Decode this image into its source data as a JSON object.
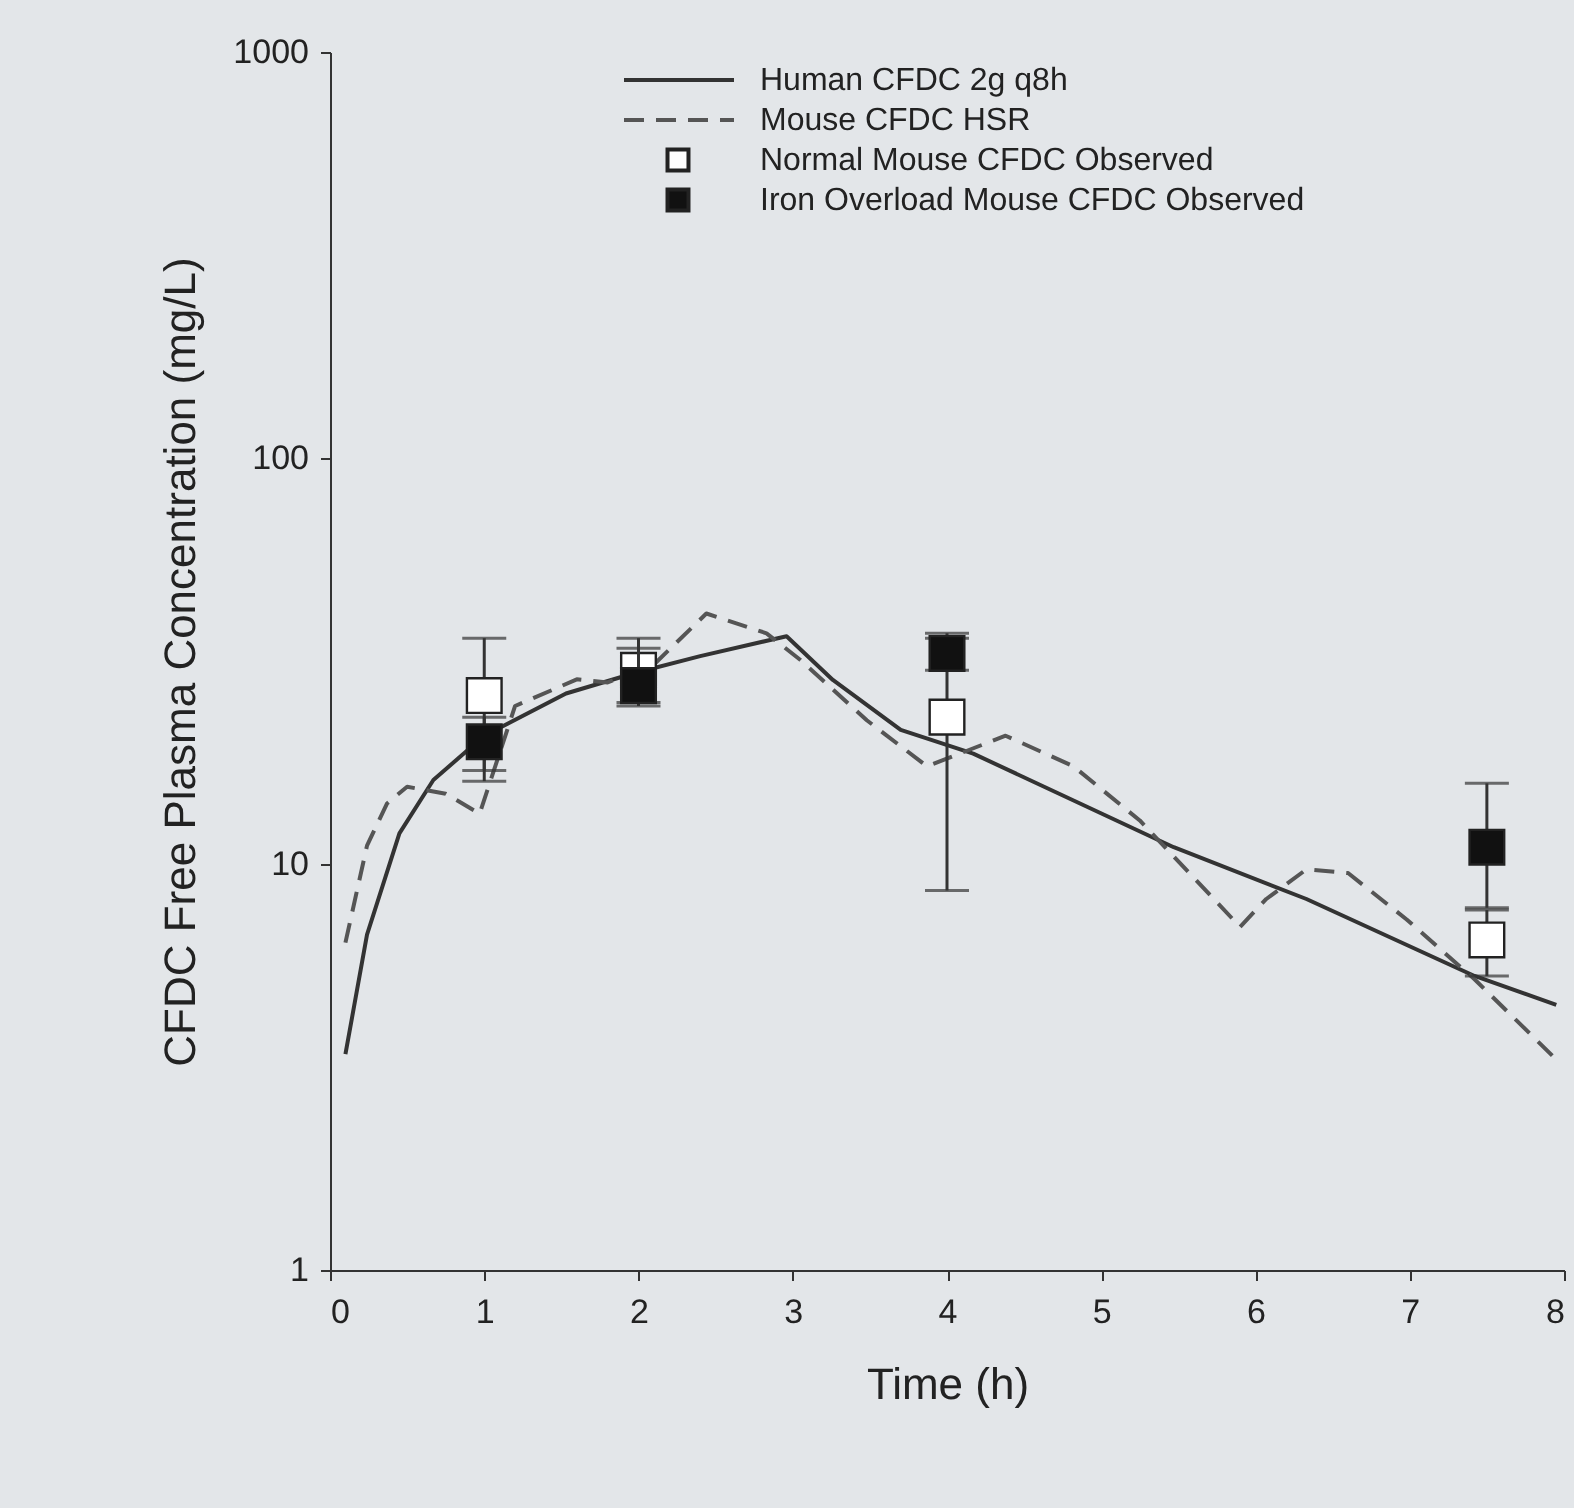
{
  "chart_data": {
    "type": "line",
    "xlabel": "Time (h)",
    "ylabel": "CFDC Free Plasma Concentration (mg/L)",
    "xlim": [
      0,
      8
    ],
    "xticks": [
      0,
      1,
      2,
      3,
      4,
      5,
      6,
      7,
      8
    ],
    "ylim": [
      1,
      1000
    ],
    "yticks": [
      1,
      10,
      100,
      1000
    ],
    "log": "y",
    "grid": false,
    "legend": "top right",
    "series": [
      {
        "name": "Human CFDC 2g q8h",
        "line_style": "solid",
        "color": "#333333",
        "x": [
          0.1,
          0.24,
          0.45,
          0.67,
          1.0,
          1.53,
          1.97,
          2.4,
          2.96,
          3.26,
          3.7,
          4.17,
          5.47,
          6.33,
          7.42,
          7.95
        ],
        "values": [
          3.4,
          6.7,
          11.9,
          16.1,
          20.7,
          26.3,
          29.5,
          32.5,
          36.4,
          28.4,
          21.4,
          18.7,
          11.0,
          8.2,
          5.3,
          4.5
        ]
      },
      {
        "name": "Mouse CFDC HSR",
        "line_style": "dashed",
        "color": "#555555",
        "x": [
          0.1,
          0.24,
          0.37,
          0.5,
          0.75,
          0.97,
          1.2,
          1.6,
          1.8,
          2.1,
          2.44,
          2.83,
          3.05,
          3.48,
          3.87,
          4.38,
          4.82,
          5.25,
          5.9,
          6.07,
          6.33,
          6.6,
          6.98,
          7.42,
          7.95
        ],
        "values": [
          6.4,
          11.1,
          14.1,
          15.5,
          14.9,
          13.3,
          24.5,
          28.5,
          28.0,
          31.0,
          41.4,
          37.0,
          31.8,
          22.6,
          17.4,
          20.7,
          17.4,
          12.8,
          7.0,
          8.2,
          9.7,
          9.5,
          7.3,
          5.2,
          3.3
        ]
      },
      {
        "name": "Normal Mouse CFDC Observed",
        "type": "scatter",
        "marker": "square",
        "color": "#ffffff",
        "x": [
          1,
          2,
          4,
          7.5
        ],
        "values": [
          26,
          30,
          23,
          6.5
        ],
        "errors": [
          [
            16,
            36
          ],
          [
            24.5,
            36
          ],
          [
            8.6,
            37
          ],
          [
            5.3,
            7.7
          ]
        ]
      },
      {
        "name": "Iron Overload Mouse CFDC Observed",
        "type": "scatter",
        "marker": "square",
        "color": "#111111",
        "x": [
          1,
          2,
          4,
          7.5
        ],
        "values": [
          20,
          27.5,
          33,
          11.0
        ],
        "errors": [
          [
            17,
            23
          ],
          [
            25,
            34
          ],
          [
            30,
            36
          ],
          [
            7.8,
            15.8
          ]
        ]
      }
    ]
  }
}
